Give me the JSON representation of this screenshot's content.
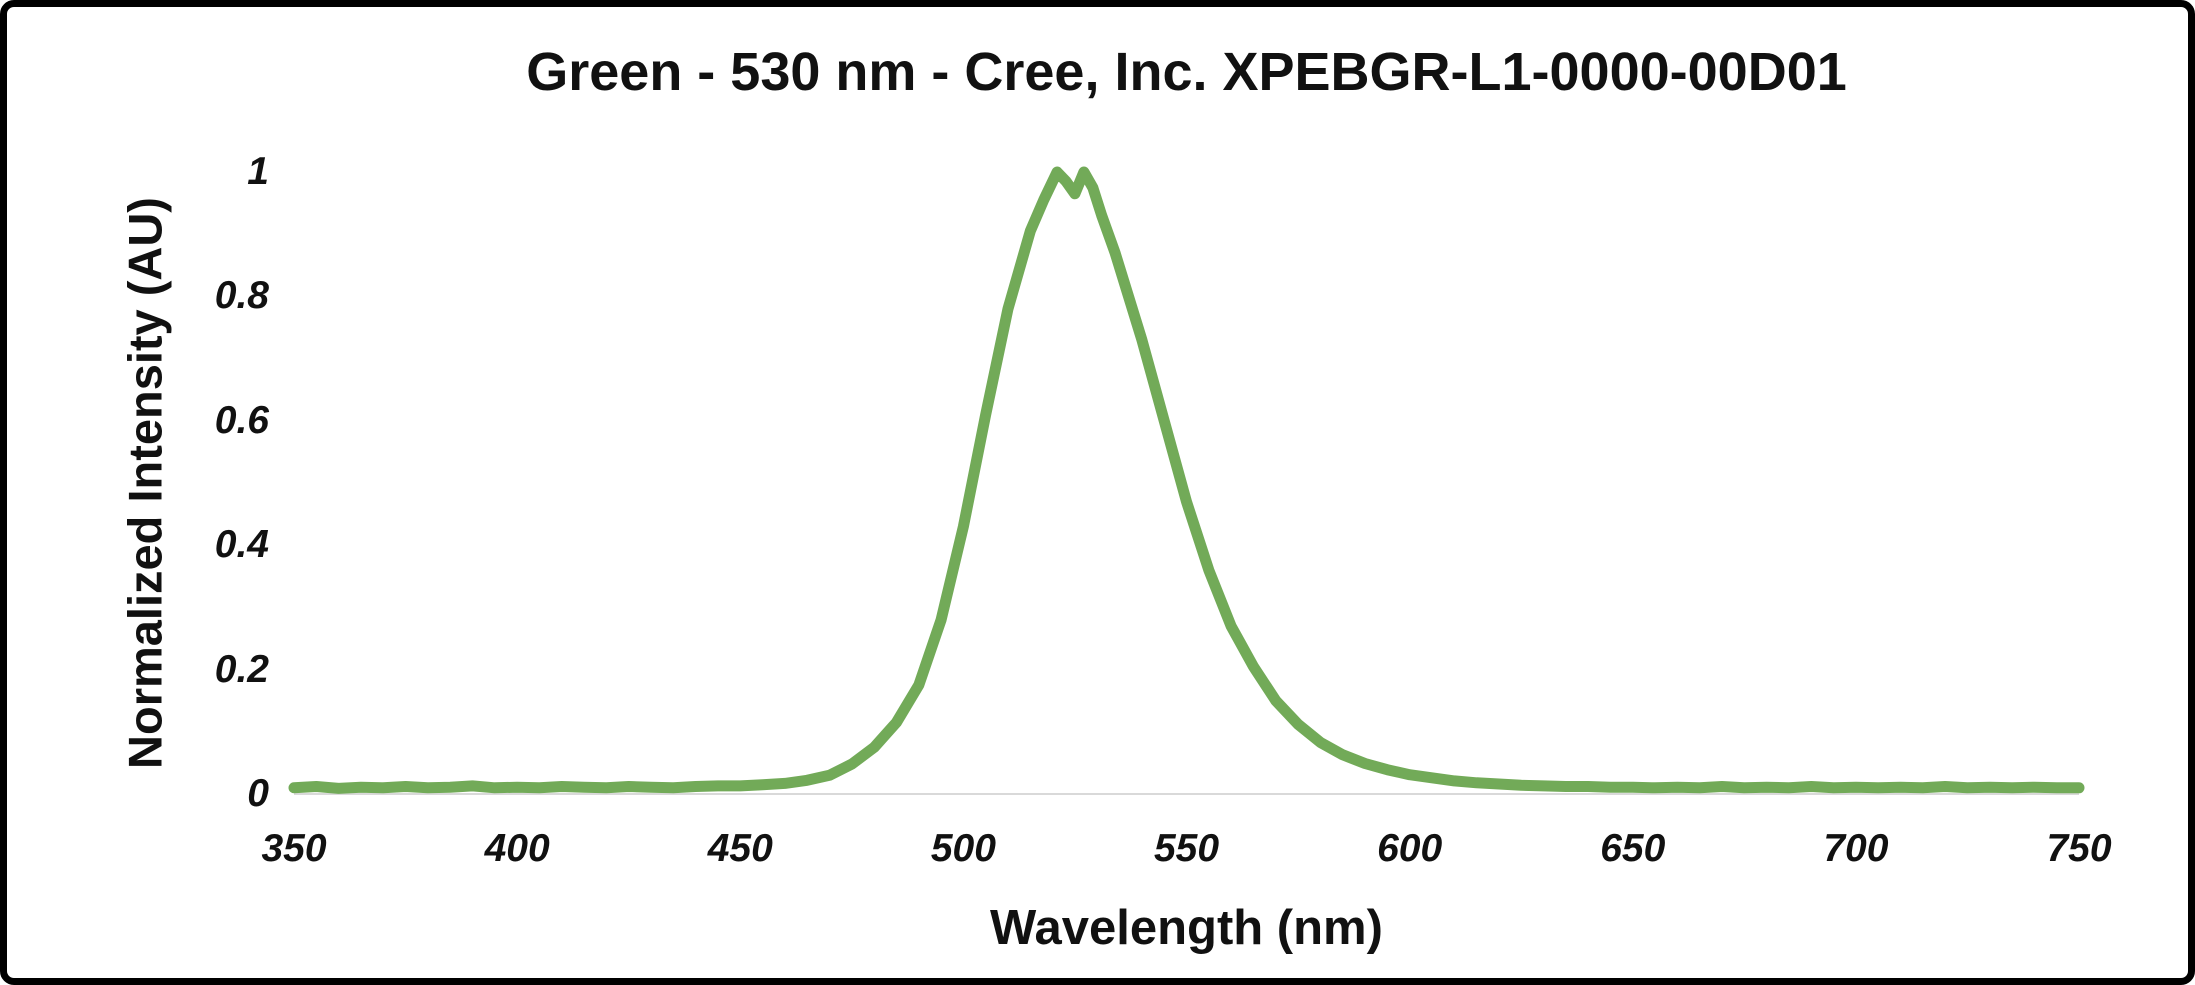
{
  "frame": {
    "background": "#ffffff",
    "border_color": "#000000"
  },
  "chart": {
    "title": "Green - 530 nm - Cree, Inc. XPEBGR-L1-0000-00D01",
    "xlabel": "Wavelength (nm)",
    "ylabel": "Normalized Intensity (AU)"
  },
  "chart_data": {
    "type": "line",
    "title": "Green - 530 nm - Cree, Inc. XPEBGR-L1-0000-00D01",
    "xlabel": "Wavelength (nm)",
    "ylabel": "Normalized Intensity (AU)",
    "xlim": [
      350,
      750
    ],
    "ylim": [
      0,
      1
    ],
    "x_ticks": [
      350,
      400,
      450,
      500,
      550,
      600,
      650,
      700,
      750
    ],
    "y_ticks": [
      0,
      0.2,
      0.4,
      0.6,
      0.8,
      1
    ],
    "grid": false,
    "legend_position": "none",
    "line_color": "#72AA58",
    "baseline_color": "#d9d9d9",
    "line_width": 11,
    "series": [
      {
        "name": "Normalized Intensity",
        "points": [
          [
            350,
            0.01
          ],
          [
            355,
            0.012
          ],
          [
            360,
            0.009
          ],
          [
            365,
            0.011
          ],
          [
            370,
            0.01
          ],
          [
            375,
            0.012
          ],
          [
            380,
            0.01
          ],
          [
            385,
            0.011
          ],
          [
            390,
            0.013
          ],
          [
            395,
            0.01
          ],
          [
            400,
            0.011
          ],
          [
            405,
            0.01
          ],
          [
            410,
            0.012
          ],
          [
            415,
            0.011
          ],
          [
            420,
            0.01
          ],
          [
            425,
            0.012
          ],
          [
            430,
            0.011
          ],
          [
            435,
            0.01
          ],
          [
            440,
            0.012
          ],
          [
            445,
            0.013
          ],
          [
            450,
            0.013
          ],
          [
            455,
            0.015
          ],
          [
            460,
            0.017
          ],
          [
            465,
            0.022
          ],
          [
            470,
            0.03
          ],
          [
            475,
            0.048
          ],
          [
            480,
            0.075
          ],
          [
            485,
            0.115
          ],
          [
            490,
            0.175
          ],
          [
            495,
            0.28
          ],
          [
            500,
            0.43
          ],
          [
            505,
            0.61
          ],
          [
            510,
            0.78
          ],
          [
            515,
            0.905
          ],
          [
            518,
            0.955
          ],
          [
            521,
            1.0
          ],
          [
            523,
            0.985
          ],
          [
            525,
            0.965
          ],
          [
            527,
            1.0
          ],
          [
            529,
            0.975
          ],
          [
            531,
            0.93
          ],
          [
            534,
            0.87
          ],
          [
            537,
            0.8
          ],
          [
            540,
            0.73
          ],
          [
            545,
            0.6
          ],
          [
            550,
            0.47
          ],
          [
            555,
            0.36
          ],
          [
            560,
            0.27
          ],
          [
            565,
            0.205
          ],
          [
            570,
            0.15
          ],
          [
            575,
            0.112
          ],
          [
            580,
            0.083
          ],
          [
            585,
            0.063
          ],
          [
            590,
            0.049
          ],
          [
            595,
            0.039
          ],
          [
            600,
            0.031
          ],
          [
            605,
            0.026
          ],
          [
            610,
            0.021
          ],
          [
            615,
            0.018
          ],
          [
            620,
            0.016
          ],
          [
            625,
            0.014
          ],
          [
            630,
            0.013
          ],
          [
            635,
            0.012
          ],
          [
            640,
            0.012
          ],
          [
            645,
            0.011
          ],
          [
            650,
            0.011
          ],
          [
            655,
            0.01
          ],
          [
            660,
            0.011
          ],
          [
            665,
            0.01
          ],
          [
            670,
            0.012
          ],
          [
            675,
            0.01
          ],
          [
            680,
            0.011
          ],
          [
            685,
            0.01
          ],
          [
            690,
            0.012
          ],
          [
            695,
            0.01
          ],
          [
            700,
            0.011
          ],
          [
            705,
            0.01
          ],
          [
            710,
            0.011
          ],
          [
            715,
            0.01
          ],
          [
            720,
            0.012
          ],
          [
            725,
            0.01
          ],
          [
            730,
            0.011
          ],
          [
            735,
            0.01
          ],
          [
            740,
            0.011
          ],
          [
            745,
            0.01
          ],
          [
            750,
            0.01
          ]
        ]
      }
    ]
  }
}
